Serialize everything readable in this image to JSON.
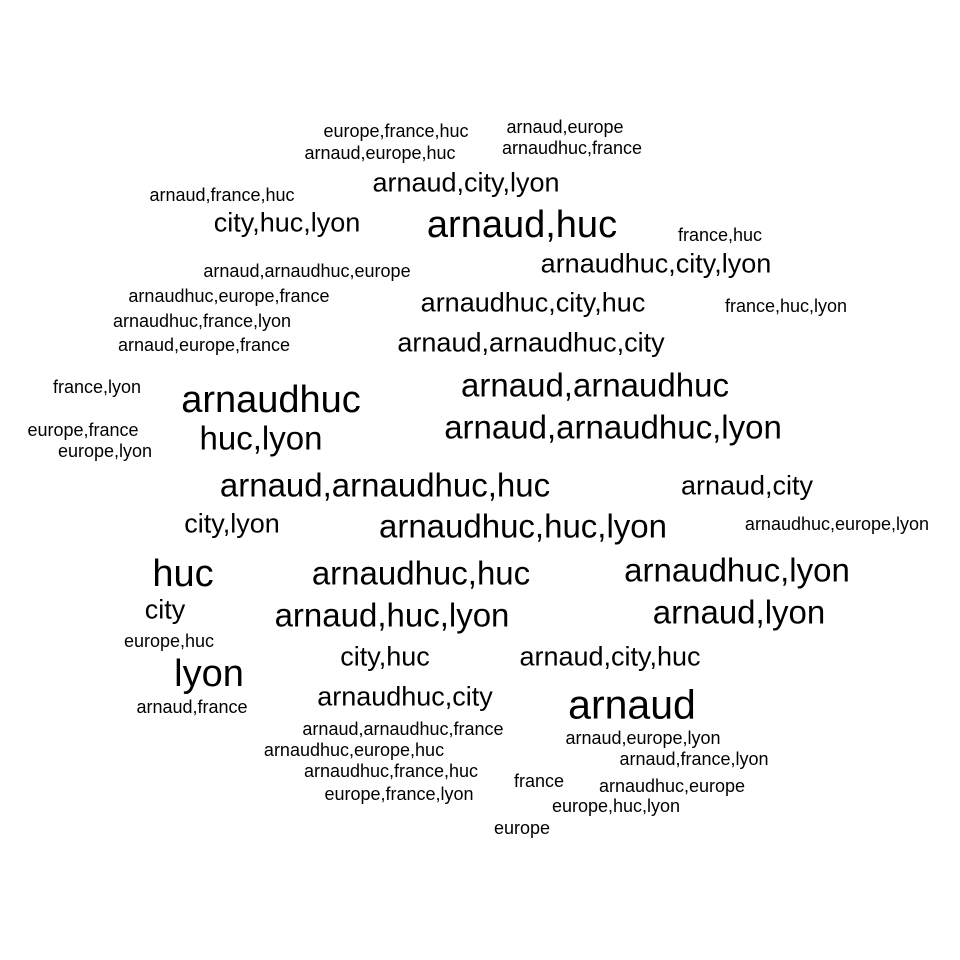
{
  "text_color": "#000000",
  "background_color": "#ffffff",
  "words": [
    {
      "text": "europe,france,huc",
      "weight": 1
    },
    {
      "text": "arnaud,europe",
      "weight": 1
    },
    {
      "text": "arnaud,europe,huc",
      "weight": 1
    },
    {
      "text": "arnaudhuc,france",
      "weight": 1
    },
    {
      "text": "arnaud,city,lyon",
      "weight": 3
    },
    {
      "text": "arnaud,france,huc",
      "weight": 1
    },
    {
      "text": "city,huc,lyon",
      "weight": 3
    },
    {
      "text": "arnaud,huc",
      "weight": 5
    },
    {
      "text": "france,huc",
      "weight": 1
    },
    {
      "text": "arnaud,arnaudhuc,europe",
      "weight": 1
    },
    {
      "text": "arnaudhuc,city,lyon",
      "weight": 3
    },
    {
      "text": "arnaudhuc,europe,france",
      "weight": 1
    },
    {
      "text": "arnaudhuc,city,huc",
      "weight": 3
    },
    {
      "text": "france,huc,lyon",
      "weight": 1
    },
    {
      "text": "arnaudhuc,france,lyon",
      "weight": 1
    },
    {
      "text": "arnaud,arnaudhuc,city",
      "weight": 3
    },
    {
      "text": "arnaud,europe,france",
      "weight": 1
    },
    {
      "text": "france,lyon",
      "weight": 1
    },
    {
      "text": "arnaud,arnaudhuc",
      "weight": 4
    },
    {
      "text": "arnaudhuc",
      "weight": 5
    },
    {
      "text": "europe,france",
      "weight": 1
    },
    {
      "text": "huc,lyon",
      "weight": 4
    },
    {
      "text": "arnaud,arnaudhuc,lyon",
      "weight": 4
    },
    {
      "text": "europe,lyon",
      "weight": 1
    },
    {
      "text": "arnaud,arnaudhuc,huc",
      "weight": 4
    },
    {
      "text": "arnaud,city",
      "weight": 3
    },
    {
      "text": "city,lyon",
      "weight": 3
    },
    {
      "text": "arnaudhuc,huc,lyon",
      "weight": 4
    },
    {
      "text": "arnaudhuc,europe,lyon",
      "weight": 1
    },
    {
      "text": "huc",
      "weight": 4
    },
    {
      "text": "arnaudhuc,huc",
      "weight": 4
    },
    {
      "text": "arnaudhuc,lyon",
      "weight": 4
    },
    {
      "text": "city",
      "weight": 3
    },
    {
      "text": "arnaud,huc,lyon",
      "weight": 4
    },
    {
      "text": "arnaud,lyon",
      "weight": 4
    },
    {
      "text": "europe,huc",
      "weight": 1
    },
    {
      "text": "city,huc",
      "weight": 3
    },
    {
      "text": "arnaud,city,huc",
      "weight": 3
    },
    {
      "text": "lyon",
      "weight": 4
    },
    {
      "text": "arnaudhuc,city",
      "weight": 3
    },
    {
      "text": "arnaud",
      "weight": 5
    },
    {
      "text": "arnaud,france",
      "weight": 1
    },
    {
      "text": "arnaud,arnaudhuc,france",
      "weight": 1
    },
    {
      "text": "arnaud,europe,lyon",
      "weight": 1
    },
    {
      "text": "arnaudhuc,europe,huc",
      "weight": 1
    },
    {
      "text": "arnaud,france,lyon",
      "weight": 1
    },
    {
      "text": "arnaudhuc,france,huc",
      "weight": 1
    },
    {
      "text": "france",
      "weight": 1
    },
    {
      "text": "arnaudhuc,europe",
      "weight": 1
    },
    {
      "text": "europe,france,lyon",
      "weight": 1
    },
    {
      "text": "europe,huc,lyon",
      "weight": 1
    },
    {
      "text": "europe",
      "weight": 1
    }
  ]
}
